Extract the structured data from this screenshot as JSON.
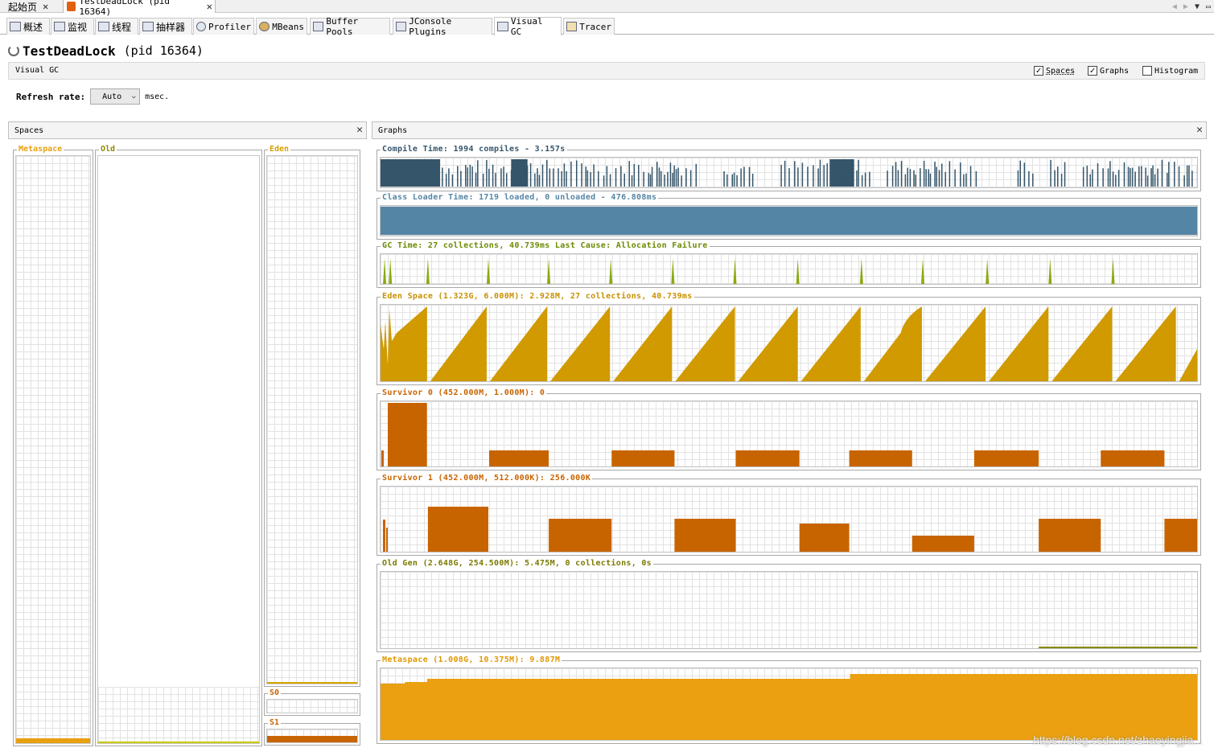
{
  "doc_tabs": [
    {
      "label": "起始页"
    },
    {
      "label": "TestDeadLock (pid 16364)"
    }
  ],
  "plugin_tabs": [
    {
      "label": "概述",
      "icon": "overview-icon"
    },
    {
      "label": "监视",
      "icon": "monitor-icon"
    },
    {
      "label": "线程",
      "icon": "threads-icon"
    },
    {
      "label": "抽样器",
      "icon": "sampler-icon"
    },
    {
      "label": "Profiler",
      "icon": "profiler-icon"
    },
    {
      "label": "MBeans",
      "icon": "mbeans-icon"
    },
    {
      "label": "Buffer Pools",
      "icon": "buffer-pools-icon"
    },
    {
      "label": "JConsole Plugins",
      "icon": "jconsole-icon"
    },
    {
      "label": "Visual GC",
      "icon": "visual-gc-icon"
    },
    {
      "label": "Tracer",
      "icon": "tracer-icon"
    }
  ],
  "header": {
    "title": "TestDeadLock",
    "pid": "(pid 16364)"
  },
  "visual_gc": {
    "label": "Visual GC",
    "checks": [
      {
        "label": "Spaces",
        "checked": true
      },
      {
        "label": "Graphs",
        "checked": true
      },
      {
        "label": "Histogram",
        "checked": false
      }
    ]
  },
  "refresh": {
    "label": "Refresh rate:",
    "value": "Auto",
    "unit": "msec."
  },
  "spaces": {
    "title": "Spaces",
    "metaspace": {
      "label": "Metaspace",
      "fill": 0.008,
      "color": "#e8a010"
    },
    "old": {
      "label": "Old",
      "fill": 0.002,
      "color": "#c8c800"
    },
    "eden": {
      "label": "Eden",
      "fill": 0.005,
      "color": "#d8a800"
    },
    "s0": {
      "label": "S0",
      "fill": 0.0,
      "color": "#c86400"
    },
    "s1": {
      "label": "S1",
      "fill": 0.5,
      "color": "#c86400"
    }
  },
  "graphs": {
    "title": "Graphs",
    "compile": {
      "label": "Compile Time: 1994 compiles - 3.157s",
      "color": "#34556a"
    },
    "classloader": {
      "label": "Class Loader Time: 1719 loaded, 0 unloaded - 476.808ms",
      "color": "#5585a5"
    },
    "gc": {
      "label": "GC Time: 27 collections, 40.739ms Last Cause: Allocation Failure",
      "color": "#8aaa10"
    },
    "eden": {
      "label": "Eden Space (1.323G, 6.000M): 2.928M, 27 collections, 40.739ms",
      "color": "#d09a00"
    },
    "s0": {
      "label": "Survivor 0 (452.000M, 1.000M): 0",
      "color": "#c86400"
    },
    "s1": {
      "label": "Survivor 1 (452.000M, 512.000K): 256.000K",
      "color": "#c86400"
    },
    "old": {
      "label": "Old Gen (2.648G, 254.500M): 5.475M, 0 collections, 0s",
      "color": "#8a8a00"
    },
    "metaspace": {
      "label": "Metaspace (1.008G, 10.375M): 9.887M",
      "color": "#eaa010"
    }
  },
  "watermark": "https://blog.csdn.net/zhaoyingjia..."
}
